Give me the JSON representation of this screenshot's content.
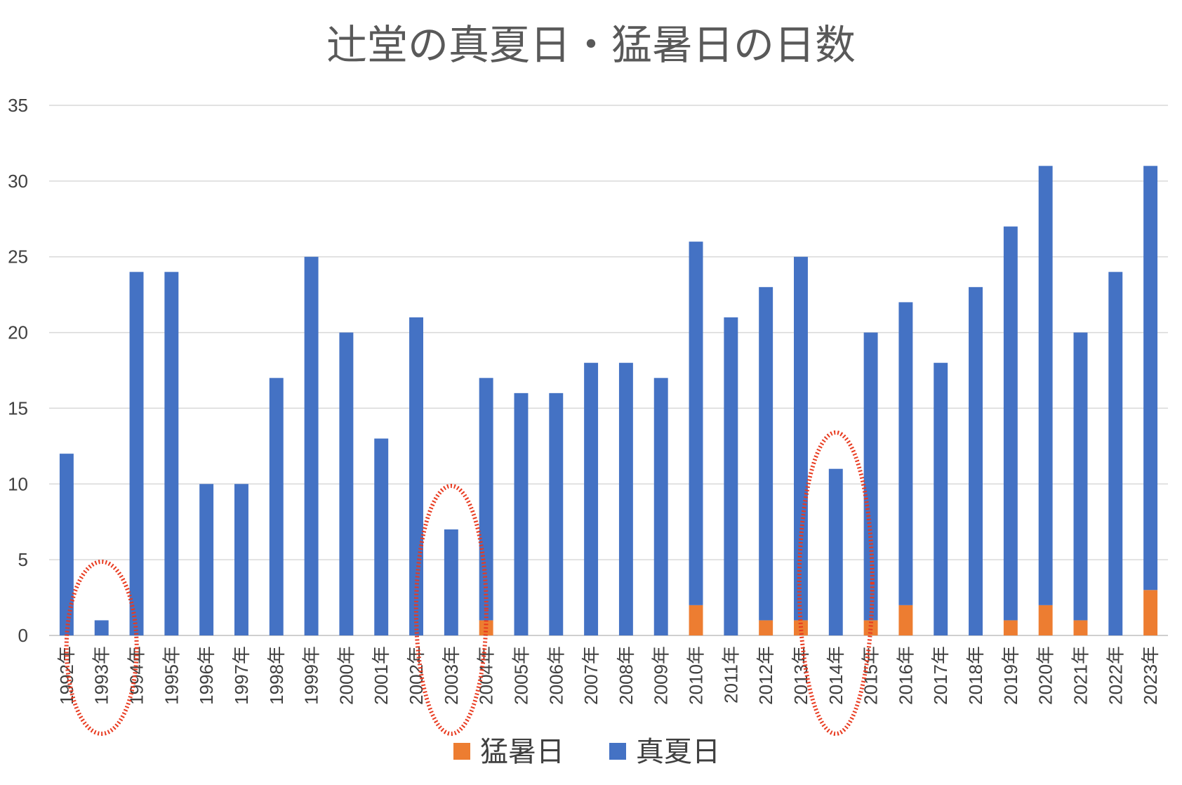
{
  "chart_data": {
    "type": "bar",
    "stacked": true,
    "title": "辻堂の真夏日・猛暑日の日数",
    "xlabel": "",
    "ylabel": "",
    "ylim": [
      0,
      35
    ],
    "yticks": [
      0,
      5,
      10,
      15,
      20,
      25,
      30,
      35
    ],
    "grid": true,
    "legend_position": "bottom",
    "categories": [
      "1992年",
      "1993年",
      "1994年",
      "1995年",
      "1996年",
      "1997年",
      "1998年",
      "1999年",
      "2000年",
      "2001年",
      "2002年",
      "2003年",
      "2004年",
      "2005年",
      "2006年",
      "2007年",
      "2008年",
      "2009年",
      "2010年",
      "2011年",
      "2012年",
      "2013年",
      "2014年",
      "2015年",
      "2016年",
      "2017年",
      "2018年",
      "2019年",
      "2020年",
      "2021年",
      "2022年",
      "2023年"
    ],
    "series": [
      {
        "name": "猛暑日",
        "color": "#ed7d31",
        "values": [
          0,
          0,
          0,
          0,
          0,
          0,
          0,
          0,
          0,
          0,
          0,
          0,
          1,
          0,
          0,
          0,
          0,
          0,
          2,
          0,
          1,
          1,
          0,
          1,
          2,
          0,
          0,
          1,
          2,
          1,
          0,
          3
        ]
      },
      {
        "name": "真夏日",
        "color": "#4472c4",
        "values": [
          12,
          1,
          24,
          24,
          10,
          10,
          17,
          25,
          20,
          13,
          21,
          7,
          16,
          16,
          16,
          18,
          18,
          17,
          24,
          21,
          22,
          24,
          11,
          19,
          20,
          18,
          23,
          26,
          29,
          19,
          24,
          28
        ]
      }
    ],
    "annotations": [
      {
        "type": "ellipse",
        "color": "#e8391e",
        "category": "1993年"
      },
      {
        "type": "ellipse",
        "color": "#e8391e",
        "category": "2003年"
      },
      {
        "type": "ellipse",
        "color": "#e8391e",
        "category": "2014年"
      }
    ]
  }
}
